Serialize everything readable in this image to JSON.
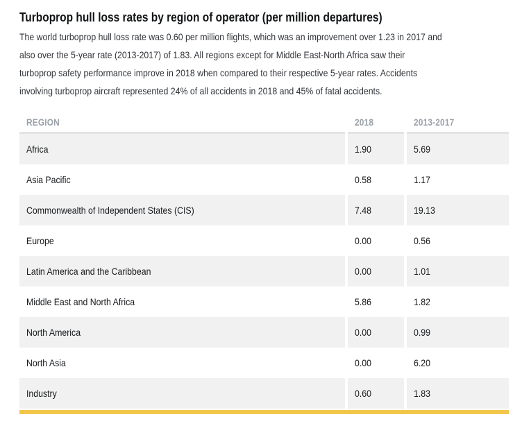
{
  "title": "Turboprop hull loss rates by region of operator (per million departures)",
  "intro": {
    "lines": [
      "The world turboprop hull loss rate was 0.60 per million flights, which was an improvement over 1.23 in 2017 and",
      "also over the 5-year rate (2013-2017) of 1.83. All regions except for Middle East-North Africa saw their",
      "turboprop safety performance improve in 2018 when compared to their respective 5-year rates. Accidents",
      "involving turboprop aircraft represented 24% of all accidents in 2018 and 45% of fatal accidents."
    ]
  },
  "table": {
    "columns": {
      "region": "REGION",
      "y2018": "2018",
      "y2013_2017": "2013-2017"
    },
    "rows": [
      {
        "region": "Africa",
        "rate_2018": "1.90",
        "rate_2013_2017": "5.69"
      },
      {
        "region": "Asia Pacific",
        "rate_2018": "0.58",
        "rate_2013_2017": "1.17"
      },
      {
        "region": "Commonwealth of Independent States (CIS)",
        "rate_2018": "7.48",
        "rate_2013_2017": "19.13"
      },
      {
        "region": "Europe",
        "rate_2018": "0.00",
        "rate_2013_2017": "0.56"
      },
      {
        "region": "Latin America and the Caribbean",
        "rate_2018": "0.00",
        "rate_2013_2017": "1.01"
      },
      {
        "region": "Middle East and North Africa",
        "rate_2018": "5.86",
        "rate_2013_2017": "1.82"
      },
      {
        "region": "North America",
        "rate_2018": "0.00",
        "rate_2013_2017": "0.99"
      },
      {
        "region": "North Asia",
        "rate_2018": "0.00",
        "rate_2013_2017": "6.20"
      },
      {
        "region": "Industry",
        "rate_2018": "0.60",
        "rate_2013_2017": "1.83"
      }
    ]
  },
  "colors": {
    "accent_bar": "#f2c64b",
    "row_stripe": "#f1f1f1",
    "header_text": "#9aa1a9",
    "header_border": "#e3e3e4"
  }
}
